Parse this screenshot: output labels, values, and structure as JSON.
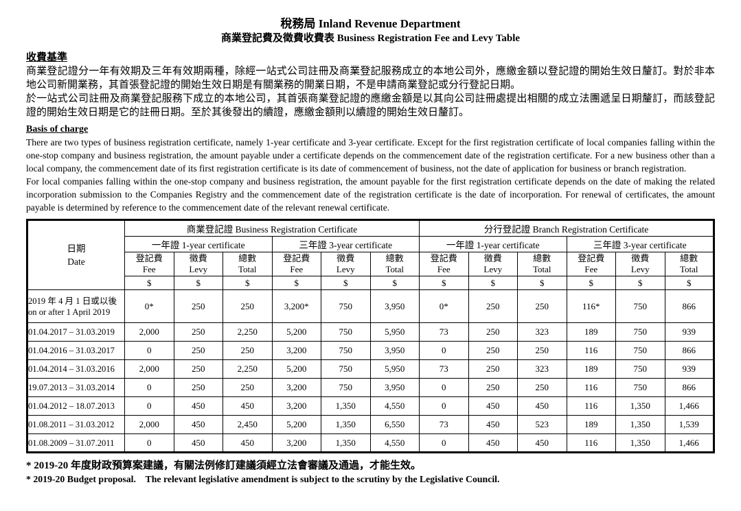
{
  "header": {
    "title": "稅務局 Inland Revenue Department",
    "subtitle": "商業登記費及徵費收費表  Business Registration Fee and Levy Table"
  },
  "basis_zh": {
    "heading": "收費基準",
    "paragraphs": [
      "商業登記證分一年有效期及三年有效期兩種，除經一站式公司註冊及商業登記服務成立的本地公司外，應繳金額以登記證的開始生效日釐訂。對於非本地公司新開業務，其首張登記證的開始生效日期是有關業務的開業日期，不是申請商業登記或分行登記日期。",
      "於一站式公司註冊及商業登記服務下成立的本地公司，其首張商業登記證的應繳金額是以其向公司註冊處提出相關的成立法團遞呈日期釐訂，而該登記證的開始生效日期是它的註冊日期。至於其後發出的續證，應繳金額則以續證的開始生效日釐訂。"
    ]
  },
  "basis_en": {
    "heading": "Basis of charge",
    "paragraphs": [
      "There are two types of business registration certificate, namely 1-year certificate and 3-year certificate. Except for the first registration certificate of local companies falling within the one-stop company and business registration, the amount payable under a certificate depends on the commencement date of the registration certificate. For a new business other than a local company, the commencement date of its first registration certificate is its date of commencement of business, not the date of application for business or branch registration.",
      "For local companies falling within the one-stop company and business registration, the amount payable for the first registration certificate depends on the date of making the related incorporation submission to the Companies Registry and the commencement date of the registration certificate is the date of incorporation. For renewal of certificates, the amount payable is determined by reference to the commencement date of the relevant renewal certificate."
    ]
  },
  "table": {
    "date_header": {
      "zh": "日期",
      "en": "Date"
    },
    "groups": [
      {
        "label": "商業登記證  Business Registration Certificate"
      },
      {
        "label": "分行登記證  Branch Registration Certificate"
      }
    ],
    "subgroups": [
      "一年證  1-year certificate",
      "三年證  3-year certificate",
      "一年證  1-year certificate",
      "三年證  3-year certificate"
    ],
    "columns": [
      {
        "zh": "登記費",
        "en": "Fee"
      },
      {
        "zh": "徵費",
        "en": "Levy"
      },
      {
        "zh": "總數",
        "en": "Total"
      }
    ],
    "currency": "$",
    "rows": [
      {
        "date_lines": [
          "2019 年 4 月 1 日或以後",
          "on or after 1 April 2019"
        ],
        "values": [
          "0*",
          "250",
          "250",
          "3,200*",
          "750",
          "3,950",
          "0*",
          "250",
          "250",
          "116*",
          "750",
          "866"
        ]
      },
      {
        "date_lines": [
          "01.04.2017 – 31.03.2019"
        ],
        "values": [
          "2,000",
          "250",
          "2,250",
          "5,200",
          "750",
          "5,950",
          "73",
          "250",
          "323",
          "189",
          "750",
          "939"
        ]
      },
      {
        "date_lines": [
          "01.04.2016 – 31.03.2017"
        ],
        "values": [
          "0",
          "250",
          "250",
          "3,200",
          "750",
          "3,950",
          "0",
          "250",
          "250",
          "116",
          "750",
          "866"
        ]
      },
      {
        "date_lines": [
          "01.04.2014 – 31.03.2016"
        ],
        "values": [
          "2,000",
          "250",
          "2,250",
          "5,200",
          "750",
          "5,950",
          "73",
          "250",
          "323",
          "189",
          "750",
          "939"
        ]
      },
      {
        "date_lines": [
          "19.07.2013 – 31.03.2014"
        ],
        "values": [
          "0",
          "250",
          "250",
          "3,200",
          "750",
          "3,950",
          "0",
          "250",
          "250",
          "116",
          "750",
          "866"
        ]
      },
      {
        "date_lines": [
          "01.04.2012 – 18.07.2013"
        ],
        "values": [
          "0",
          "450",
          "450",
          "3,200",
          "1,350",
          "4,550",
          "0",
          "450",
          "450",
          "116",
          "1,350",
          "1,466"
        ]
      },
      {
        "date_lines": [
          "01.08.2011 – 31.03.2012"
        ],
        "values": [
          "2,000",
          "450",
          "2,450",
          "5,200",
          "1,350",
          "6,550",
          "73",
          "450",
          "523",
          "189",
          "1,350",
          "1,539"
        ]
      },
      {
        "date_lines": [
          "01.08.2009 – 31.07.2011"
        ],
        "values": [
          "0",
          "450",
          "450",
          "3,200",
          "1,350",
          "4,550",
          "0",
          "450",
          "450",
          "116",
          "1,350",
          "1,466"
        ]
      }
    ]
  },
  "footnotes": [
    "* 2019-20 年度財政預算案建議，有關法例修訂建議須經立法會審議及通過，才能生效。",
    "* 2019-20 Budget proposal.    The relevant legislative amendment is subject to the scrutiny by the Legislative Council."
  ]
}
